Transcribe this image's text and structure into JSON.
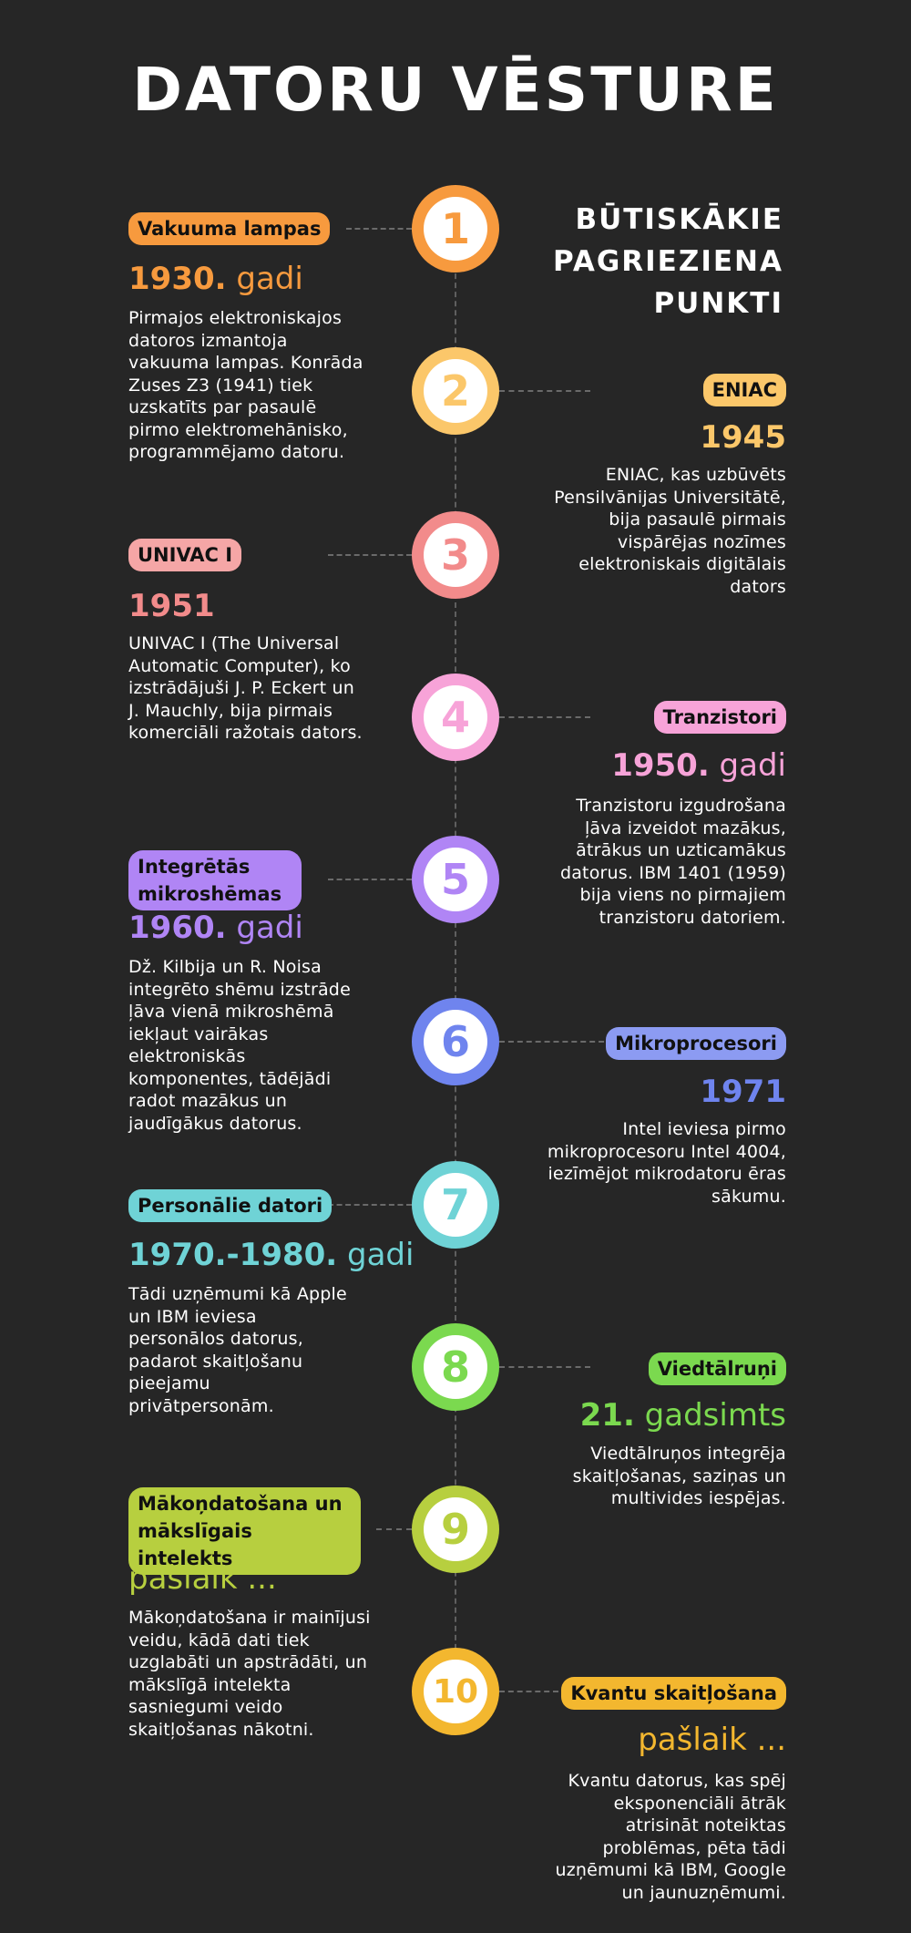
{
  "title": "DATORU VĒSTURE",
  "subtitle": "BŪTISKĀKIE PAGRIEZIENA PUNKTI",
  "events": [
    {
      "number": "1",
      "color": "#f79a3e",
      "tag": "Vakuuma lampas",
      "year_bold": "1930.",
      "year_light": "gadi",
      "description": "Pirmajos elektroniskajos datoros izmantoja vakuuma lampas. Konrāda Zuses Z3 (1941) tiek uzskatīts par pasaulē pirmo elektromehānisko, programmējamo datoru."
    },
    {
      "number": "2",
      "color": "#fbc76a",
      "tag": "ENIAC",
      "year_bold": "1945",
      "year_light": "",
      "description": "ENIAC, kas uzbūvēts Pensilvānijas Universitātē, bija pasaulē pirmais vispārējas nozīmes elektroniskais digitālais dators"
    },
    {
      "number": "3",
      "color": "#f28b8b",
      "tag": "UNIVAC I",
      "year_bold": "1951",
      "year_light": "",
      "description": "UNIVAC I (The Universal Automatic Computer), ko izstrādājuši J. P. Eckert un J. Mauchly, bija pirmais komerciāli ražotais dators."
    },
    {
      "number": "4",
      "color": "#f7a3d8",
      "tag": "Tranzistori",
      "year_bold": "1950.",
      "year_light": "gadi",
      "description": "Tranzistoru izgudrošana ļāva izveidot mazākus, ātrākus un uzticamākus datorus. IBM 1401 (1959) bija viens no pirmajiem tranzistoru datoriem."
    },
    {
      "number": "5",
      "color": "#b085f5",
      "tag": "Integrētās mikroshēmas",
      "year_bold": "1960.",
      "year_light": "gadi",
      "description": "Dž. Kilbija un R. Noisa integrēto shēmu izstrāde ļāva vienā mikroshēmā iekļaut vairākas elektroniskās komponentes, tādējādi radot mazākus un jaudīgākus datorus."
    },
    {
      "number": "6",
      "color": "#6f84ee",
      "tag": "Mikroprocesori",
      "year_bold": "1971",
      "year_light": "",
      "description": "Intel ieviesa pirmo mikroprocesoru Intel 4004, iezīmējot mikrodatoru ēras sākumu."
    },
    {
      "number": "7",
      "color": "#6fd3d6",
      "tag": "Personālie datori",
      "year_bold": "1970.-1980.",
      "year_light": "gadi",
      "description": "Tādi uzņēmumi kā Apple un IBM ieviesa personālos datorus, padarot skaitļošanu pieejamu privātpersonām."
    },
    {
      "number": "8",
      "color": "#7bd94f",
      "tag": "Viedtālruņi",
      "year_bold": "21.",
      "year_light": "gadsimts",
      "description": "Viedtālruņos integrēja skaitļošanas, saziņas un multivides iespējas."
    },
    {
      "number": "9",
      "color": "#b7cf3f",
      "tag": "Mākoņdatošana un mākslīgais intelekts",
      "year_bold": "",
      "year_light": "pašlaik ...",
      "description": "Mākoņdatošana ir mainījusi veidu, kādā dati tiek uzglabāti un apstrādāti, un mākslīgā intelekta sasniegumi veido skaitļošanas nākotni."
    },
    {
      "number": "10",
      "color": "#f3b72f",
      "tag": "Kvantu skaitļošana",
      "year_bold": "",
      "year_light": "pašlaik ...",
      "description": "Kvantu datorus, kas spēj eksponenciāli ātrāk atrisināt noteiktas problēmas, pēta tādi uzņēmumi kā IBM, Google un jaunuzņēmumi."
    }
  ]
}
